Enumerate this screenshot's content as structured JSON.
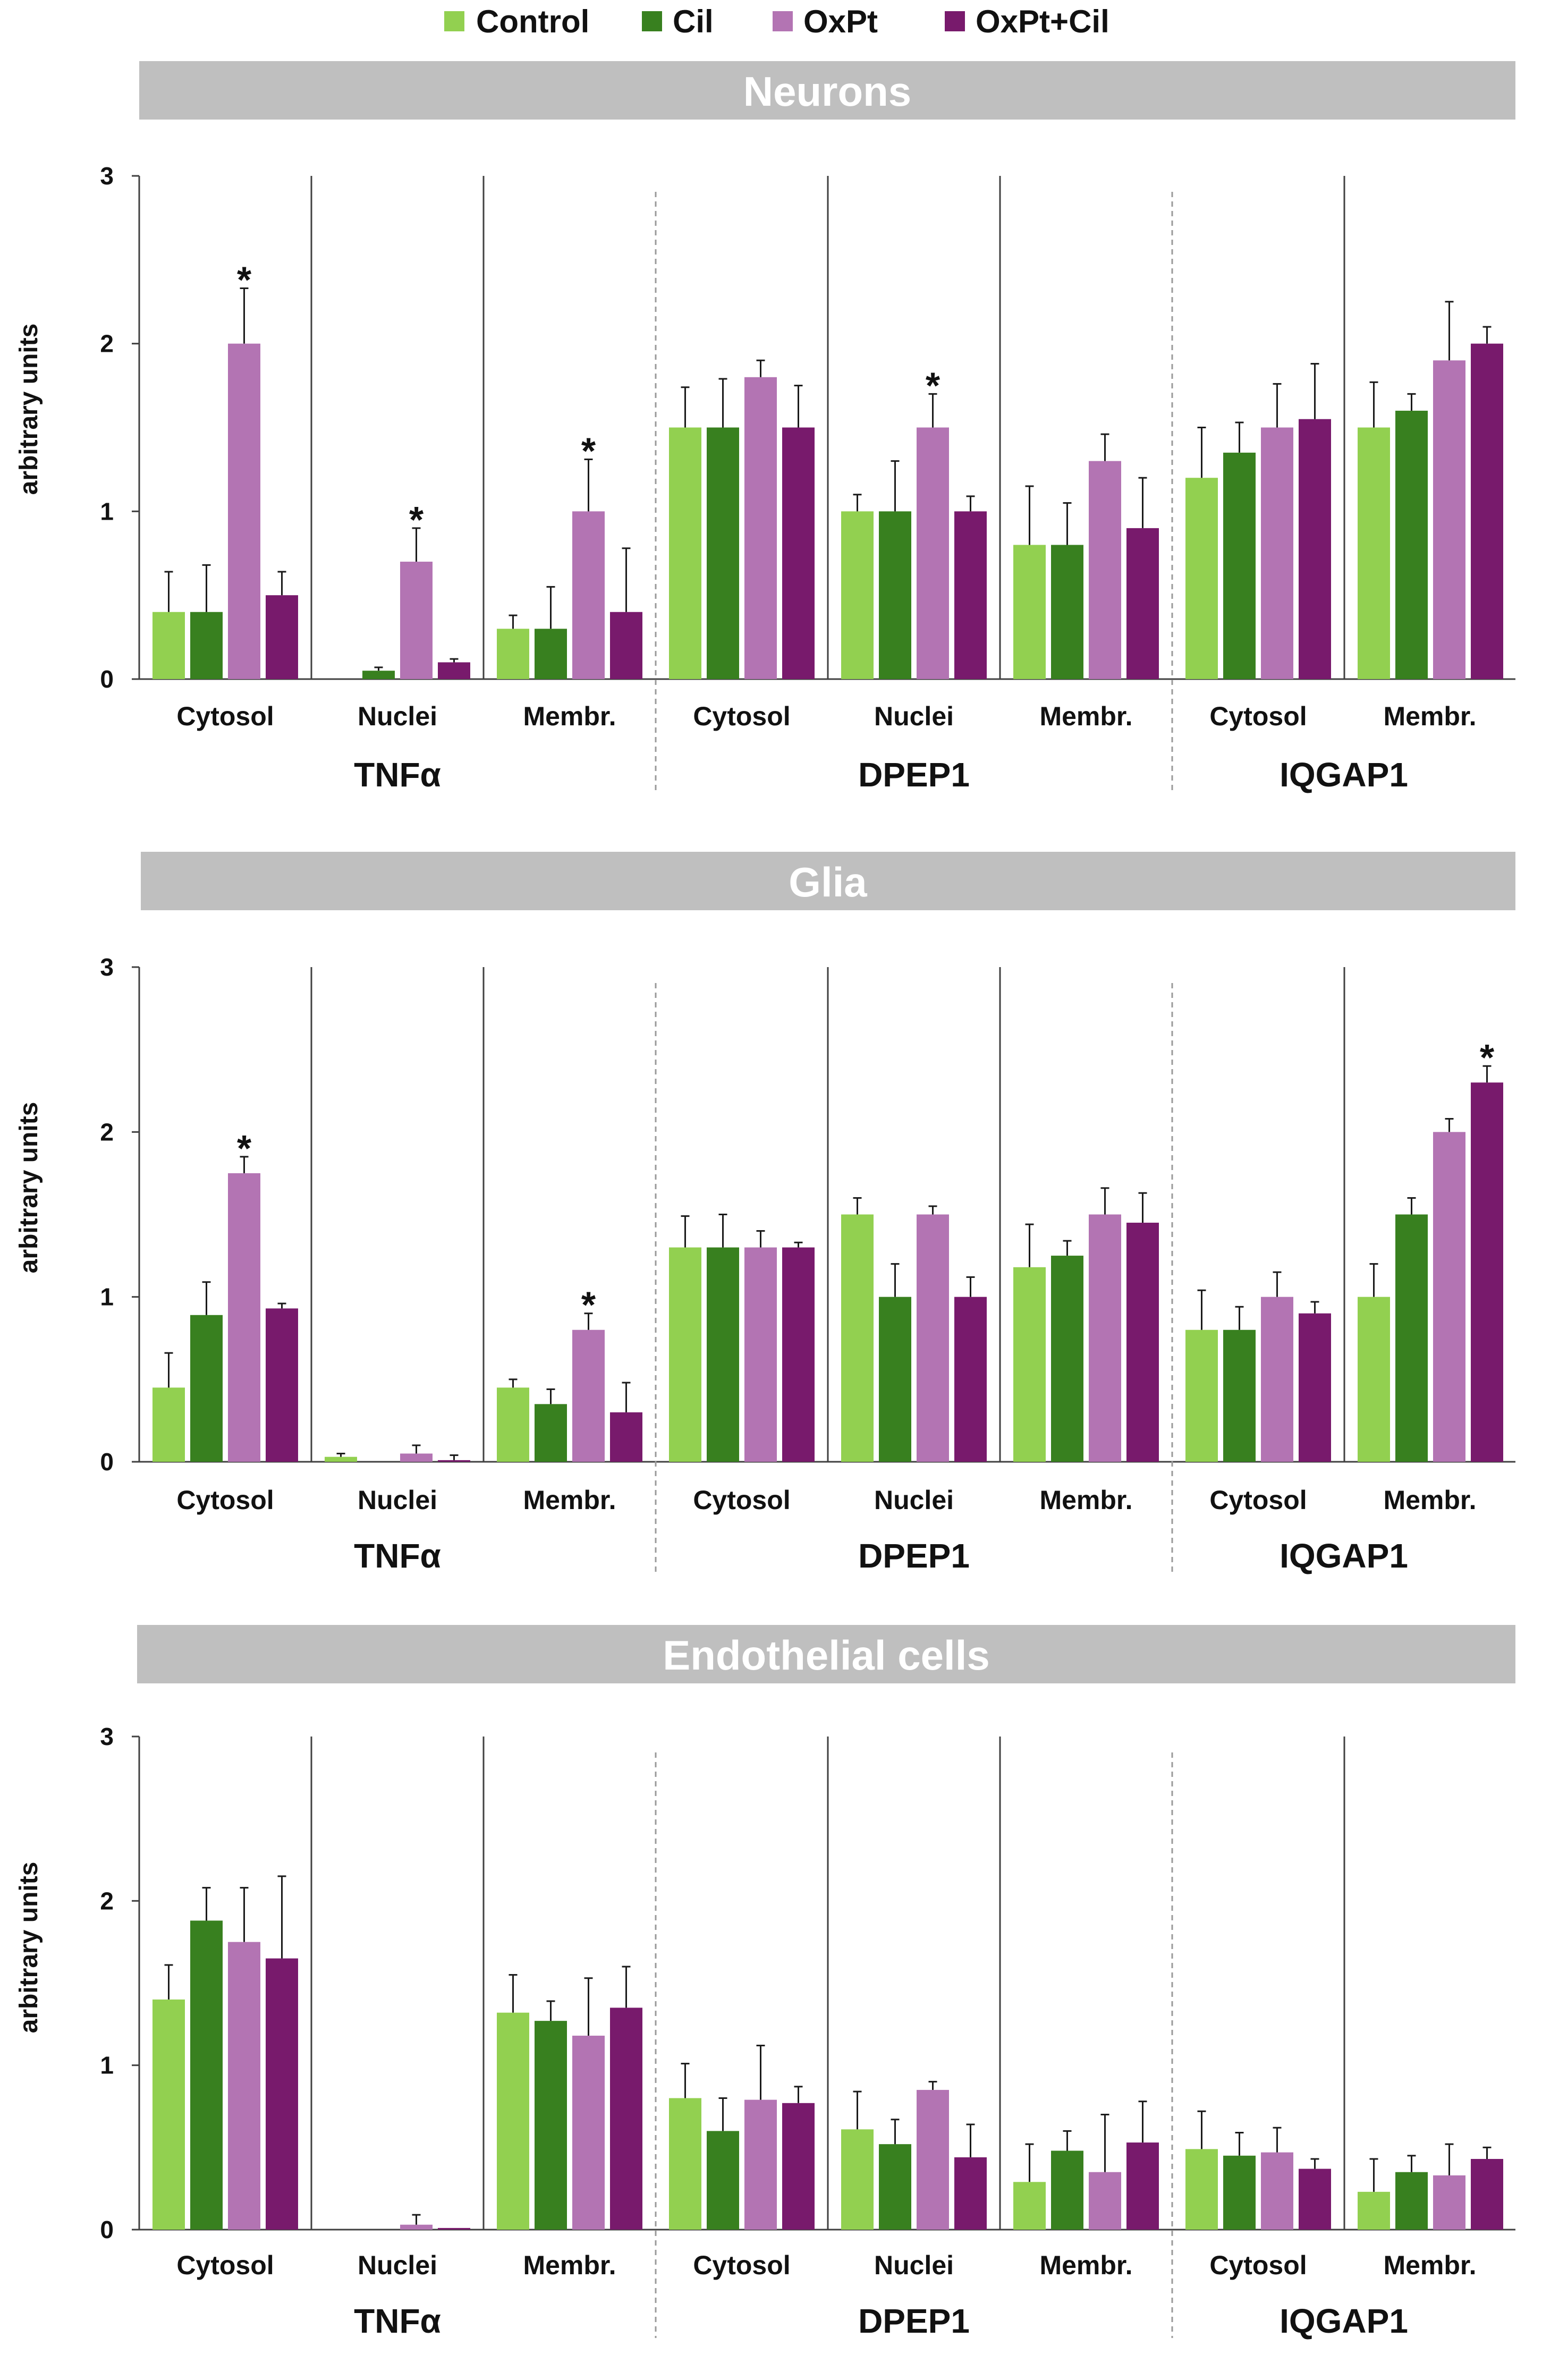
{
  "legend": [
    {
      "name": "Control",
      "color": "#92d050"
    },
    {
      "name": "Cil",
      "color": "#38801f"
    },
    {
      "name": "OxPt",
      "color": "#b374b3"
    },
    {
      "name": "OxPt+Cil",
      "color": "#781a6c"
    }
  ],
  "y_axis_label": "arbitrary units",
  "chart_data": [
    {
      "type": "bar",
      "title": "Neurons",
      "ylabel": "arbitrary units",
      "ylim": [
        0,
        3
      ],
      "yticks": [
        0,
        1,
        2,
        3
      ],
      "series_names": [
        "Control",
        "Cil",
        "OxPt",
        "OxPt+Cil"
      ],
      "groups": [
        {
          "protein": "TNFα",
          "compartments": [
            {
              "label": "Cytosol",
              "values": [
                0.4,
                0.4,
                2.0,
                0.5
              ],
              "errors": [
                0.24,
                0.28,
                0.33,
                0.14
              ],
              "significant": [
                false,
                false,
                true,
                false
              ]
            },
            {
              "label": "Nuclei",
              "values": [
                0.0,
                0.05,
                0.7,
                0.1
              ],
              "errors": [
                0.0,
                0.02,
                0.2,
                0.02
              ],
              "significant": [
                false,
                false,
                true,
                false
              ]
            },
            {
              "label": "Membr.",
              "values": [
                0.3,
                0.3,
                1.0,
                0.4
              ],
              "errors": [
                0.08,
                0.25,
                0.31,
                0.38
              ],
              "significant": [
                false,
                false,
                true,
                false
              ]
            }
          ]
        },
        {
          "protein": "DPEP1",
          "compartments": [
            {
              "label": "Cytosol",
              "values": [
                1.5,
                1.5,
                1.8,
                1.5
              ],
              "errors": [
                0.24,
                0.29,
                0.1,
                0.25
              ],
              "significant": [
                false,
                false,
                false,
                false
              ]
            },
            {
              "label": "Nuclei",
              "values": [
                1.0,
                1.0,
                1.5,
                1.0
              ],
              "errors": [
                0.1,
                0.3,
                0.2,
                0.09
              ],
              "significant": [
                false,
                false,
                true,
                false
              ]
            },
            {
              "label": "Membr.",
              "values": [
                0.8,
                0.8,
                1.3,
                0.9
              ],
              "errors": [
                0.35,
                0.25,
                0.16,
                0.3
              ],
              "significant": [
                false,
                false,
                false,
                false
              ]
            }
          ]
        },
        {
          "protein": "IQGAP1",
          "compartments": [
            {
              "label": "Cytosol",
              "values": [
                1.2,
                1.35,
                1.5,
                1.55
              ],
              "errors": [
                0.3,
                0.18,
                0.26,
                0.33
              ],
              "significant": [
                false,
                false,
                false,
                false
              ]
            },
            {
              "label": "Membr.",
              "values": [
                1.5,
                1.6,
                1.9,
                2.0
              ],
              "errors": [
                0.27,
                0.1,
                0.35,
                0.1
              ],
              "significant": [
                false,
                false,
                false,
                false
              ]
            }
          ]
        }
      ]
    },
    {
      "type": "bar",
      "title": "Glia",
      "ylabel": "arbitrary units",
      "ylim": [
        0,
        3
      ],
      "yticks": [
        0,
        1,
        2,
        3
      ],
      "series_names": [
        "Control",
        "Cil",
        "OxPt",
        "OxPt+Cil"
      ],
      "groups": [
        {
          "protein": "TNFα",
          "compartments": [
            {
              "label": "Cytosol",
              "values": [
                0.45,
                0.89,
                1.75,
                0.93
              ],
              "errors": [
                0.21,
                0.2,
                0.1,
                0.03
              ],
              "significant": [
                false,
                false,
                true,
                false
              ]
            },
            {
              "label": "Nuclei",
              "values": [
                0.03,
                0.0,
                0.05,
                0.01
              ],
              "errors": [
                0.02,
                0.0,
                0.05,
                0.03
              ],
              "significant": [
                false,
                false,
                false,
                false
              ]
            },
            {
              "label": "Membr.",
              "values": [
                0.45,
                0.35,
                0.8,
                0.3
              ],
              "errors": [
                0.05,
                0.09,
                0.1,
                0.18
              ],
              "significant": [
                false,
                false,
                true,
                false
              ]
            }
          ]
        },
        {
          "protein": "DPEP1",
          "compartments": [
            {
              "label": "Cytosol",
              "values": [
                1.3,
                1.3,
                1.3,
                1.3
              ],
              "errors": [
                0.19,
                0.2,
                0.1,
                0.03
              ],
              "significant": [
                false,
                false,
                false,
                false
              ]
            },
            {
              "label": "Nuclei",
              "values": [
                1.5,
                1.0,
                1.5,
                1.0
              ],
              "errors": [
                0.1,
                0.2,
                0.05,
                0.12
              ],
              "significant": [
                false,
                false,
                false,
                false
              ]
            },
            {
              "label": "Membr.",
              "values": [
                1.18,
                1.25,
                1.5,
                1.45
              ],
              "errors": [
                0.26,
                0.09,
                0.16,
                0.18
              ],
              "significant": [
                false,
                false,
                false,
                false
              ]
            }
          ]
        },
        {
          "protein": "IQGAP1",
          "compartments": [
            {
              "label": "Cytosol",
              "values": [
                0.8,
                0.8,
                1.0,
                0.9
              ],
              "errors": [
                0.24,
                0.14,
                0.15,
                0.07
              ],
              "significant": [
                false,
                false,
                false,
                false
              ]
            },
            {
              "label": "Membr.",
              "values": [
                1.0,
                1.5,
                2.0,
                2.3
              ],
              "errors": [
                0.2,
                0.1,
                0.08,
                0.1
              ],
              "significant": [
                false,
                false,
                false,
                true
              ]
            }
          ]
        }
      ]
    },
    {
      "type": "bar",
      "title": "Endothelial cells",
      "ylabel": "arbitrary units",
      "ylim": [
        0,
        3
      ],
      "yticks": [
        0,
        1,
        2,
        3
      ],
      "series_names": [
        "Control",
        "Cil",
        "OxPt",
        "OxPt+Cil"
      ],
      "groups": [
        {
          "protein": "TNFα",
          "compartments": [
            {
              "label": "Cytosol",
              "values": [
                1.4,
                1.88,
                1.75,
                1.65
              ],
              "errors": [
                0.21,
                0.2,
                0.33,
                0.5
              ],
              "significant": [
                false,
                false,
                false,
                false
              ]
            },
            {
              "label": "Nuclei",
              "values": [
                0.0,
                0.0,
                0.03,
                0.01
              ],
              "errors": [
                0.0,
                0.0,
                0.06,
                0.0
              ],
              "significant": [
                false,
                false,
                false,
                false
              ]
            },
            {
              "label": "Membr.",
              "values": [
                1.32,
                1.27,
                1.18,
                1.35
              ],
              "errors": [
                0.23,
                0.12,
                0.35,
                0.25
              ],
              "significant": [
                false,
                false,
                false,
                false
              ]
            }
          ]
        },
        {
          "protein": "DPEP1",
          "compartments": [
            {
              "label": "Cytosol",
              "values": [
                0.8,
                0.6,
                0.79,
                0.77
              ],
              "errors": [
                0.21,
                0.2,
                0.33,
                0.1
              ],
              "significant": [
                false,
                false,
                false,
                false
              ]
            },
            {
              "label": "Nuclei",
              "values": [
                0.61,
                0.52,
                0.85,
                0.44
              ],
              "errors": [
                0.23,
                0.15,
                0.05,
                0.2
              ],
              "significant": [
                false,
                false,
                false,
                false
              ]
            },
            {
              "label": "Membr.",
              "values": [
                0.29,
                0.48,
                0.35,
                0.53
              ],
              "errors": [
                0.23,
                0.12,
                0.35,
                0.25
              ],
              "significant": [
                false,
                false,
                false,
                false
              ]
            }
          ]
        },
        {
          "protein": "IQGAP1",
          "compartments": [
            {
              "label": "Cytosol",
              "values": [
                0.49,
                0.45,
                0.47,
                0.37
              ],
              "errors": [
                0.23,
                0.14,
                0.15,
                0.06
              ],
              "significant": [
                false,
                false,
                false,
                false
              ]
            },
            {
              "label": "Membr.",
              "values": [
                0.23,
                0.35,
                0.33,
                0.43
              ],
              "errors": [
                0.2,
                0.1,
                0.19,
                0.07
              ],
              "significant": [
                false,
                false,
                false,
                false
              ]
            }
          ]
        }
      ]
    }
  ]
}
